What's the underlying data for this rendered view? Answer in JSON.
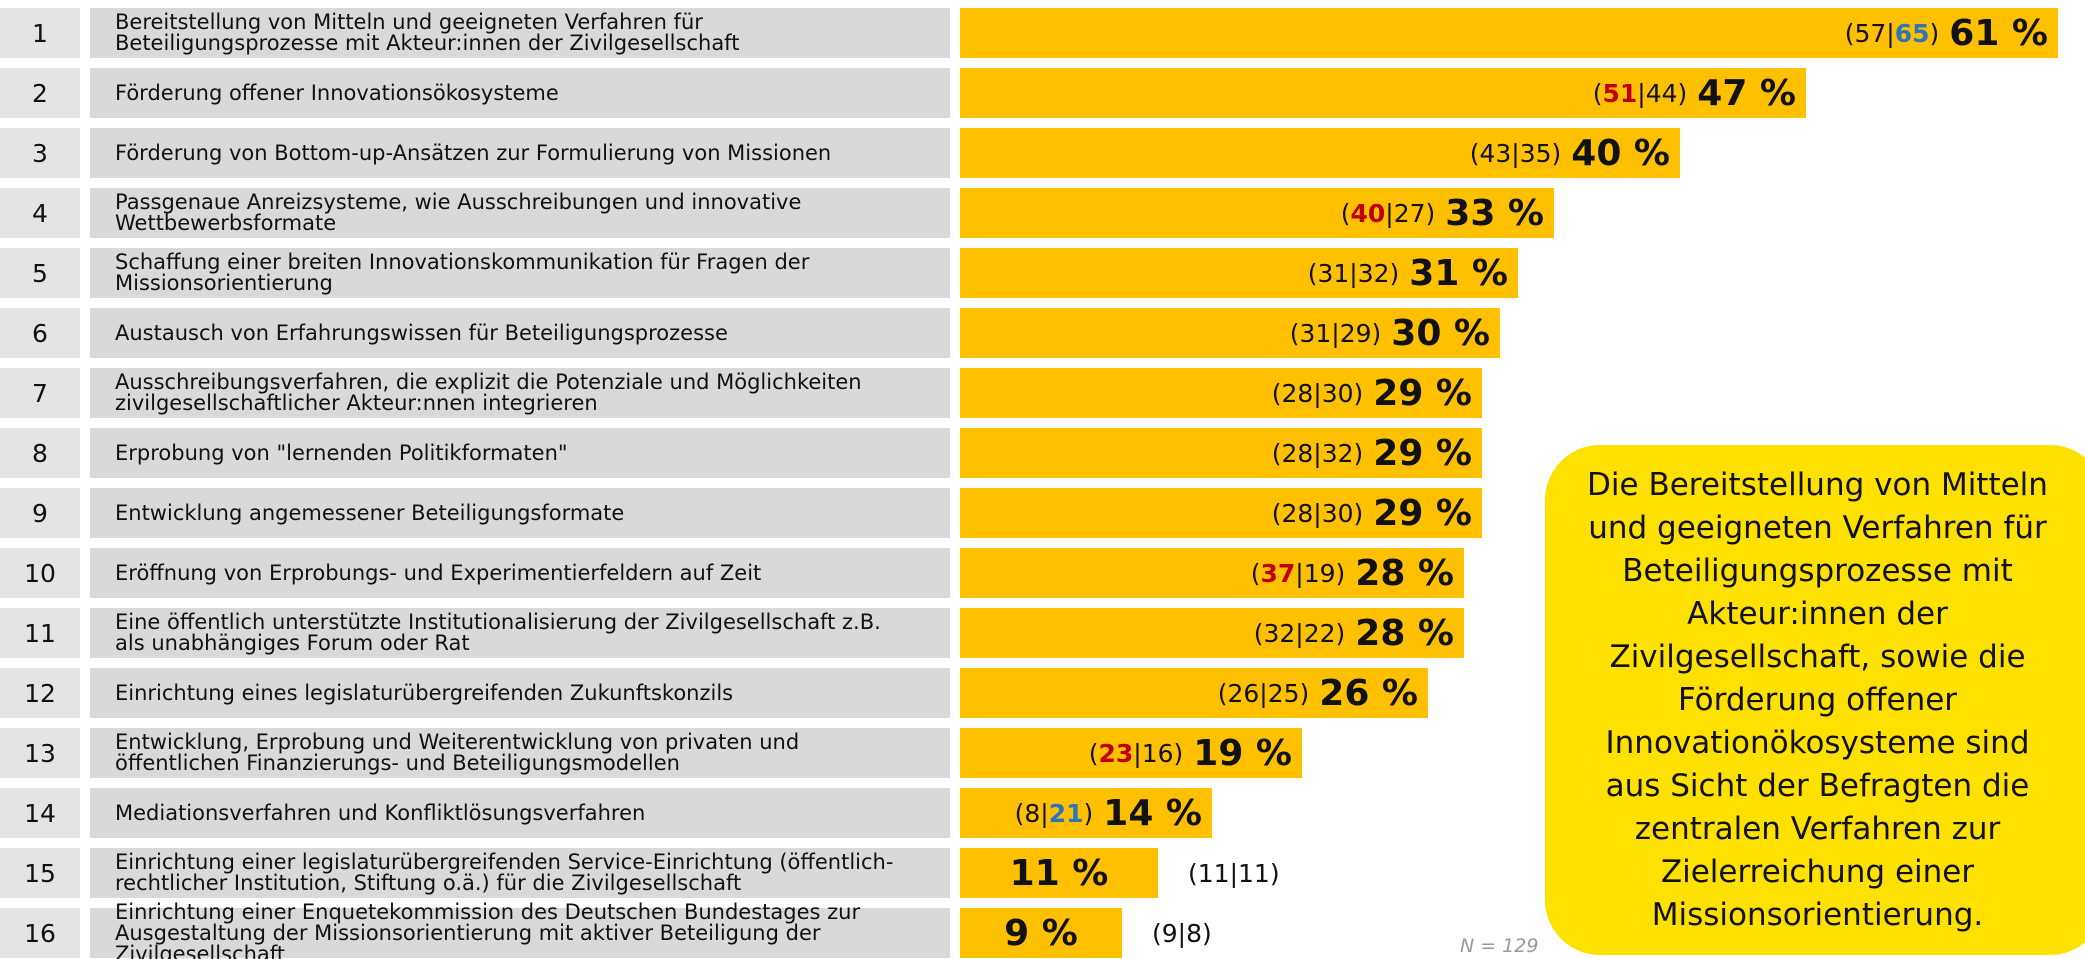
{
  "chart_data": {
    "type": "bar",
    "orientation": "horizontal",
    "ranks": [
      1,
      2,
      3,
      4,
      5,
      6,
      7,
      8,
      9,
      10,
      11,
      12,
      13,
      14,
      15,
      16
    ],
    "categories": [
      "Bereitstellung von Mitteln und geeigneten Verfahren für\nBeteiligungsprozesse mit Akteur:innen der Zivilgesellschaft",
      "Förderung offener Innovationsökosysteme",
      "Förderung von Bottom-up-Ansätzen zur Formulierung von Missionen",
      "Passgenaue Anreizsysteme, wie Ausschreibungen und innovative\nWettbewerbsformate",
      "Schaffung einer breiten Innovationskommunikation für Fragen der\nMissionsorientierung",
      "Austausch von Erfahrungswissen für Beteiligungsprozesse",
      "Ausschreibungsverfahren, die explizit die Potenziale und Möglichkeiten\nzivilgesellschaftlicher Akteur:nnen integrieren",
      "Erprobung von \"lernenden Politikformaten\"",
      "Entwicklung angemessener Beteiligungsformate",
      "Eröffnung von Erprobungs- und Experimentierfeldern auf Zeit",
      "Eine öffentlich unterstützte Institutionalisierung der Zivilgesellschaft z.B.\nals unabhängiges Forum oder Rat",
      "Einrichtung eines legislaturübergreifenden Zukunftskonzils",
      "Entwicklung, Erprobung und Weiterentwicklung von privaten und\nöffentlichen Finanzierungs- und Beteiligungsmodellen",
      "Mediationsverfahren und Konfliktlösungsverfahren",
      "Einrichtung einer legislaturübergreifenden Service-Einrichtung (öffentlich-\nrechtlicher Institution, Stiftung o.ä.) für die Zivilgesellschaft",
      "Einrichtung einer Enquetekommission des Deutschen Bundestages zur\nAusgestaltung der Missionsorientierung mit aktiver Beteiligung der Zivilgesellschaft"
    ],
    "values": [
      61,
      47,
      40,
      33,
      31,
      30,
      29,
      29,
      29,
      28,
      28,
      26,
      19,
      14,
      11,
      9
    ],
    "value_labels": [
      "61 %",
      "47 %",
      "40 %",
      "33 %",
      "31 %",
      "30 %",
      "29 %",
      "29 %",
      "29 %",
      "28 %",
      "28 %",
      "26 %",
      "19 %",
      "14 %",
      "11 %",
      "9 %"
    ],
    "color": "#ffc000",
    "pairs": [
      [
        57,
        65
      ],
      [
        51,
        44
      ],
      [
        43,
        35
      ],
      [
        40,
        27
      ],
      [
        31,
        32
      ],
      [
        31,
        29
      ],
      [
        28,
        30
      ],
      [
        28,
        32
      ],
      [
        28,
        30
      ],
      [
        37,
        19
      ],
      [
        32,
        22
      ],
      [
        26,
        25
      ],
      [
        23,
        16
      ],
      [
        8,
        21
      ],
      [
        11,
        11
      ],
      [
        9,
        8
      ]
    ],
    "pair_colors": [
      [
        null,
        "#2e75b6"
      ],
      [
        "#c00000",
        null
      ],
      [
        null,
        null
      ],
      [
        "#c00000",
        null
      ],
      [
        null,
        null
      ],
      [
        null,
        null
      ],
      [
        null,
        null
      ],
      [
        null,
        null
      ],
      [
        null,
        null
      ],
      [
        "#c00000",
        null
      ],
      [
        null,
        null
      ],
      [
        null,
        null
      ],
      [
        "#c00000",
        null
      ],
      [
        null,
        "#2e75b6"
      ],
      [
        null,
        null
      ],
      [
        null,
        null
      ]
    ],
    "pair_open": "(",
    "pair_separator": "|",
    "pair_close": ")",
    "note": "N = 129",
    "callout": "Die Bereitstellung von Mitteln und geeigneten Verfahren für Beteiligungsprozesse mit Akteur:innen der Zivilgesellschaft, sowie die Förderung offener Innovationökosysteme sind aus Sicht der Befragten die zentralen Verfahren zur Zielerreichung einer Missionsorientierung."
  }
}
